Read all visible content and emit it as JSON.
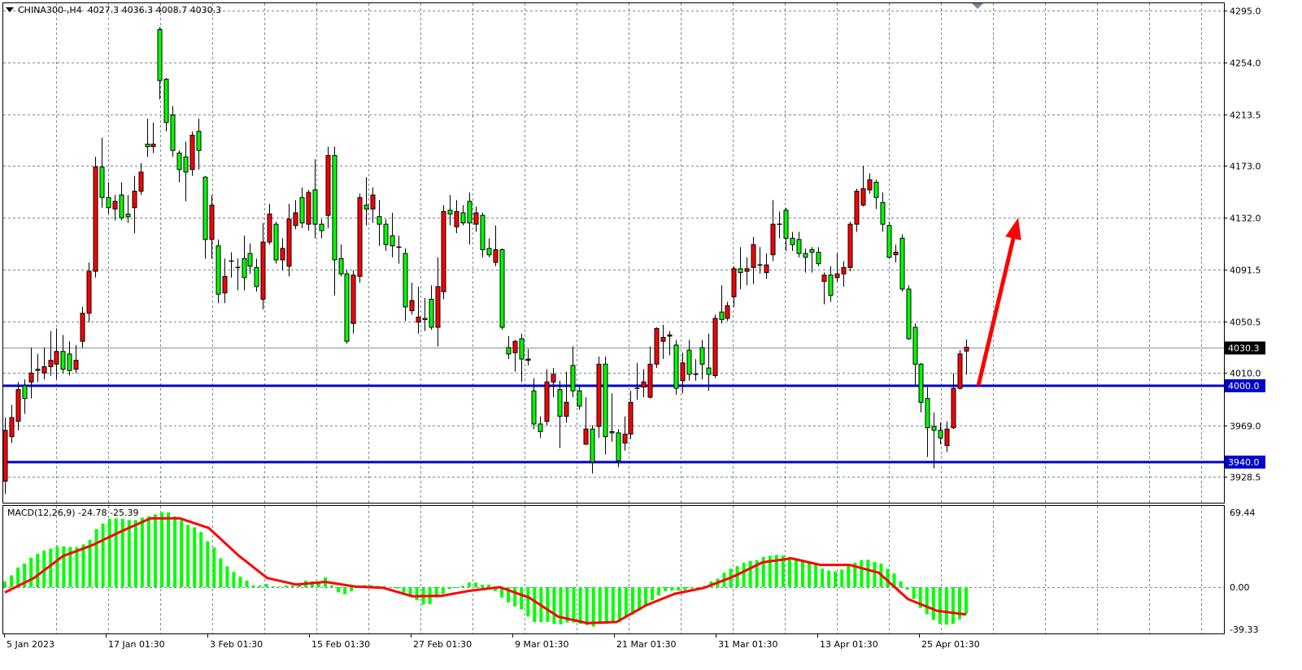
{
  "header": {
    "symbol_timeframe": "CHINA300-,H4",
    "ohlc": "4027.3 4036.3 4008.7 4030.3"
  },
  "macd": {
    "label": "MACD(12,26,9)",
    "values": "-24.78 -25.39",
    "axis_ticks": [
      "69.44",
      "0.00",
      "-39.33"
    ],
    "tick_values": [
      69.44,
      0,
      -39.33
    ],
    "histogram_color": "#00FF00",
    "signal_color": "#FF0000",
    "histogram": [
      5.4,
      11,
      18.3,
      21.9,
      27.3,
      31,
      33.9,
      35.8,
      38,
      38,
      37.3,
      37.3,
      39.7,
      43.9,
      54.1,
      59.2,
      63.4,
      63.9,
      63.4,
      62.4,
      62.4,
      64.6,
      65.8,
      67.7,
      69.4,
      69.4,
      65.8,
      62.1,
      57.8,
      55.6,
      51.2,
      42.6,
      36.8,
      26.8,
      19.3,
      14.1,
      9.7,
      6.1,
      1.7,
      1.7,
      2.9,
      0.7,
      0.7,
      1.7,
      1.7,
      2.4,
      6.1,
      5.4,
      4.4,
      9,
      1.7,
      -4.9,
      -6.6,
      -3.7,
      0,
      1.9,
      1.9,
      1.2,
      0.7,
      0,
      -1.2,
      -4.9,
      -8.5,
      -12.2,
      -16.3,
      -15.8,
      -9.7,
      -6.1,
      -1.9,
      0,
      1.2,
      4.4,
      4.1,
      2.4,
      2.4,
      -3.7,
      -9.7,
      -14.1,
      -17.8,
      -20.7,
      -27.3,
      -32.4,
      -32.4,
      -32.4,
      -34.1,
      -34.6,
      -32.9,
      -32.9,
      -34.1,
      -35.3,
      -36.6,
      -34.1,
      -34.1,
      -32.9,
      -32.4,
      -28,
      -25.6,
      -21.9,
      -17.8,
      -12.2,
      -7.8,
      -3.7,
      -3.2,
      -3.2,
      -2.7,
      -1.2,
      0,
      1.2,
      5.4,
      8,
      13.4,
      17.1,
      19.5,
      22.7,
      24.4,
      25.1,
      28,
      29.2,
      30,
      29.5,
      28,
      26.8,
      25.6,
      23.6,
      20.7,
      17.1,
      15.4,
      14.6,
      16.3,
      19.5,
      22.7,
      25.1,
      25.6,
      23.6,
      21.9,
      17.1,
      12.7,
      5.4,
      -2.4,
      -11,
      -19.5,
      -25.1,
      -30.5,
      -34.1,
      -34.8,
      -34.1,
      -30,
      -24.78
    ],
    "signal": [
      -4.9,
      8.5,
      29,
      39,
      52,
      64,
      64,
      55,
      30,
      8.5,
      2.4,
      4.9,
      0.7,
      -0.7,
      -8.5,
      -8,
      -3.2,
      0,
      -9.7,
      -27.5,
      -33.4,
      -32.4,
      -17,
      -6.1,
      -0.7,
      9.7,
      23,
      26.8,
      20.7,
      20.7,
      13.4,
      -11,
      -22,
      -25.39
    ]
  },
  "chart_data": {
    "type": "candlestick",
    "symbol": "CHINA300-",
    "timeframe": "H4",
    "fields": [
      "open",
      "high",
      "low",
      "close"
    ],
    "up_color": "#FF0000",
    "down_color": "#00FF00",
    "ylim": [
      3908,
      4303
    ],
    "grid": true,
    "y_ticks": [
      "4295.0",
      "4254.0",
      "4213.5",
      "4173.0",
      "4132.0",
      "4091.5",
      "4050.5",
      "4010.0",
      "3969.0",
      "3928.5"
    ],
    "y_tick_values": [
      4295,
      4254,
      4213.5,
      4173,
      4132,
      4091.5,
      4050.5,
      4010,
      3969,
      3928.5
    ],
    "x_tick_labels": [
      "5 Jan 2023",
      "17 Jan 01:30",
      "3 Feb 01:30",
      "15 Feb 01:30",
      "27 Feb 01:30",
      "9 Mar 01:30",
      "21 Mar 01:30",
      "31 Mar 01:30",
      "13 Apr 01:30",
      "25 Apr 01:30"
    ],
    "bid": {
      "value": 4030.3,
      "label": "4030.3"
    },
    "levels": [
      {
        "value": 4000.0,
        "label": "4000.0",
        "color": "#0000CD"
      },
      {
        "value": 3940.0,
        "label": "3940.0",
        "color": "#0000CD"
      }
    ],
    "arrow": {
      "from_price": 4000,
      "to_price": 4132,
      "direction": "up",
      "color": "#FF0000"
    },
    "candles": [
      [
        3925,
        3975,
        3915,
        3965
      ],
      [
        3960,
        3985,
        3955,
        3975
      ],
      [
        3972,
        4003,
        3965,
        3997
      ],
      [
        4000,
        4005,
        3978,
        3990
      ],
      [
        4003,
        4030,
        3990,
        4010
      ],
      [
        4013,
        4025,
        4003,
        4012
      ],
      [
        4010,
        4030,
        4005,
        4015
      ],
      [
        4015,
        4043,
        4008,
        4020
      ],
      [
        4017,
        4045,
        4005,
        4027
      ],
      [
        4027,
        4040,
        4010,
        4013
      ],
      [
        4025,
        4035,
        4008,
        4012
      ],
      [
        4013,
        4032,
        4010,
        4020
      ],
      [
        4035,
        4062,
        4030,
        4057
      ],
      [
        4057,
        4097,
        4050,
        4090
      ],
      [
        4090,
        4180,
        4085,
        4172
      ],
      [
        4172,
        4195,
        4140,
        4148
      ],
      [
        4148,
        4160,
        4135,
        4140
      ],
      [
        4139,
        4150,
        4130,
        4145
      ],
      [
        4150,
        4160,
        4130,
        4132
      ],
      [
        4135,
        4150,
        4128,
        4133
      ],
      [
        4140,
        4165,
        4120,
        4153
      ],
      [
        4153,
        4175,
        4150,
        4168
      ],
      [
        4190,
        4210,
        4180,
        4188
      ],
      [
        4188,
        4207,
        4183,
        4190
      ],
      [
        4280,
        4282,
        4225,
        4240
      ],
      [
        4241,
        4242,
        4200,
        4207
      ],
      [
        4213,
        4220,
        4180,
        4185
      ],
      [
        4183,
        4185,
        4160,
        4170
      ],
      [
        4180,
        4192,
        4145,
        4168
      ],
      [
        4170,
        4200,
        4165,
        4197
      ],
      [
        4200,
        4210,
        4170,
        4185
      ],
      [
        4164,
        4165,
        4100,
        4115
      ],
      [
        4115,
        4150,
        4100,
        4142
      ],
      [
        4110,
        4115,
        4065,
        4072
      ],
      [
        4073,
        4100,
        4065,
        4086
      ],
      [
        4098,
        4105,
        4085,
        4098
      ],
      [
        4093,
        4100,
        4075,
        4093
      ],
      [
        4100,
        4118,
        4075,
        4085
      ],
      [
        4104,
        4112,
        4088,
        4094
      ],
      [
        4093,
        4100,
        4074,
        4078
      ],
      [
        4068,
        4128,
        4060,
        4113
      ],
      [
        4113,
        4143,
        4111,
        4135
      ],
      [
        4127,
        4129,
        4096,
        4099
      ],
      [
        4099,
        4116,
        4091,
        4108
      ],
      [
        4094,
        4143,
        4086,
        4131
      ],
      [
        4126,
        4146,
        4123,
        4136
      ],
      [
        4148,
        4156,
        4124,
        4128
      ],
      [
        4127,
        4154,
        4122,
        4152
      ],
      [
        4154,
        4178,
        4116,
        4127
      ],
      [
        4127,
        4131,
        4116,
        4122
      ],
      [
        4134,
        4188,
        4124,
        4181
      ],
      [
        4181,
        4188,
        4071,
        4099
      ],
      [
        4100,
        4111,
        4086,
        4088
      ],
      [
        4088,
        4091,
        4033,
        4035
      ],
      [
        4049,
        4091,
        4041,
        4087
      ],
      [
        4086,
        4151,
        4081,
        4148
      ],
      [
        4142,
        4164,
        4126,
        4139
      ],
      [
        4139,
        4156,
        4128,
        4150
      ],
      [
        4133,
        4146,
        4110,
        4127
      ],
      [
        4127,
        4131,
        4106,
        4111
      ],
      [
        4118,
        4136,
        4101,
        4110
      ],
      [
        4109,
        4118,
        4096,
        4109
      ],
      [
        4104,
        4108,
        4051,
        4062
      ],
      [
        4059,
        4081,
        4056,
        4067
      ],
      [
        4050,
        4078,
        4041,
        4054
      ],
      [
        4053,
        4069,
        4043,
        4052
      ],
      [
        4068,
        4079,
        4044,
        4046
      ],
      [
        4046,
        4101,
        4031,
        4078
      ],
      [
        4074,
        4142,
        4068,
        4137
      ],
      [
        4138,
        4150,
        4126,
        4135
      ],
      [
        4125,
        4146,
        4120,
        4137
      ],
      [
        4136,
        4142,
        4126,
        4128
      ],
      [
        4145,
        4152,
        4111,
        4128
      ],
      [
        4127,
        4141,
        4121,
        4136
      ],
      [
        4134,
        4136,
        4101,
        4107
      ],
      [
        4108,
        4116,
        4101,
        4103
      ],
      [
        4097,
        4126,
        4094,
        4107
      ],
      [
        4107,
        4108,
        4044,
        4046
      ],
      [
        4030,
        4039,
        4021,
        4025
      ],
      [
        4026,
        4036,
        4011,
        4035
      ],
      [
        4037,
        4041,
        4003,
        4021
      ],
      [
        4020,
        4029,
        4016,
        4021
      ],
      [
        3996,
        4006,
        3966,
        3970
      ],
      [
        3970,
        3976,
        3959,
        3964
      ],
      [
        3972,
        4013,
        3969,
        4003
      ],
      [
        4003,
        4014,
        3991,
        4009
      ],
      [
        3997,
        4004,
        3951,
        3976
      ],
      [
        3976,
        4011,
        3971,
        3987
      ],
      [
        4016,
        4031,
        3991,
        3996
      ],
      [
        3996,
        4001,
        3981,
        3984
      ],
      [
        3954,
        3991,
        3954,
        3966
      ],
      [
        3966,
        3969,
        3931,
        3940
      ],
      [
        3968,
        4023,
        3959,
        4017
      ],
      [
        4017,
        4023,
        3946,
        3960
      ],
      [
        3964,
        3994,
        3956,
        3963
      ],
      [
        3963,
        3966,
        3936,
        3941
      ],
      [
        3955,
        3976,
        3949,
        3962
      ],
      [
        3962,
        3996,
        3958,
        3987
      ],
      [
        3998,
        4018,
        3989,
        3998
      ],
      [
        3999,
        4013,
        3991,
        4003
      ],
      [
        3991,
        4031,
        3990,
        4017
      ],
      [
        4017,
        4046,
        4014,
        4045
      ],
      [
        4035,
        4048,
        4021,
        4038
      ],
      [
        4039,
        4043,
        4024,
        4040
      ],
      [
        4032,
        4036,
        3993,
        3998
      ],
      [
        4004,
        4026,
        3994,
        4018
      ],
      [
        4028,
        4036,
        4004,
        4009
      ],
      [
        4009,
        4021,
        4004,
        4009
      ],
      [
        4030,
        4036,
        4005,
        4017
      ],
      [
        4014,
        4041,
        3996,
        4009
      ],
      [
        4008,
        4056,
        4006,
        4053
      ],
      [
        4058,
        4079,
        4049,
        4052
      ],
      [
        4053,
        4066,
        4051,
        4063
      ],
      [
        4070,
        4094,
        4062,
        4092
      ],
      [
        4092,
        4109,
        4076,
        4089
      ],
      [
        4090,
        4101,
        4079,
        4092
      ],
      [
        4093,
        4117,
        4080,
        4111
      ],
      [
        4095,
        4109,
        4088,
        4095
      ],
      [
        4089,
        4104,
        4084,
        4095
      ],
      [
        4103,
        4146,
        4098,
        4127
      ],
      [
        4127,
        4137,
        4116,
        4127
      ],
      [
        4138,
        4140,
        4106,
        4116
      ],
      [
        4116,
        4121,
        4106,
        4111
      ],
      [
        4115,
        4121,
        4101,
        4104
      ],
      [
        4104,
        4108,
        4089,
        4101
      ],
      [
        4107,
        4109,
        4089,
        4105
      ],
      [
        4105,
        4109,
        4094,
        4096
      ],
      [
        4082,
        4089,
        4064,
        4087
      ],
      [
        4087,
        4094,
        4066,
        4071
      ],
      [
        4085,
        4104,
        4082,
        4088
      ],
      [
        4088,
        4098,
        4078,
        4093
      ],
      [
        4093,
        4129,
        4090,
        4127
      ],
      [
        4127,
        4155,
        4121,
        4153
      ],
      [
        4142,
        4173,
        4141,
        4155
      ],
      [
        4154,
        4167,
        4151,
        4162
      ],
      [
        4160,
        4162,
        4139,
        4148
      ],
      [
        4144,
        4152,
        4121,
        4127
      ],
      [
        4126,
        4129,
        4100,
        4101
      ],
      [
        4103,
        4111,
        4097,
        4105
      ],
      [
        4116,
        4119,
        4074,
        4076
      ],
      [
        4076,
        4079,
        4036,
        4037
      ],
      [
        4046,
        4049,
        4001,
        4017
      ],
      [
        4017,
        4018,
        3979,
        3987
      ],
      [
        3990,
        3999,
        3944,
        3967
      ],
      [
        3968,
        3979,
        3935,
        3965
      ],
      [
        3965,
        3971,
        3954,
        3959
      ],
      [
        3953,
        3972,
        3948,
        3966
      ],
      [
        3967,
        4010,
        3966,
        3998
      ],
      [
        3998,
        4028,
        3997,
        4025
      ],
      [
        4027.3,
        4036.3,
        4008.7,
        4030.3
      ]
    ]
  }
}
